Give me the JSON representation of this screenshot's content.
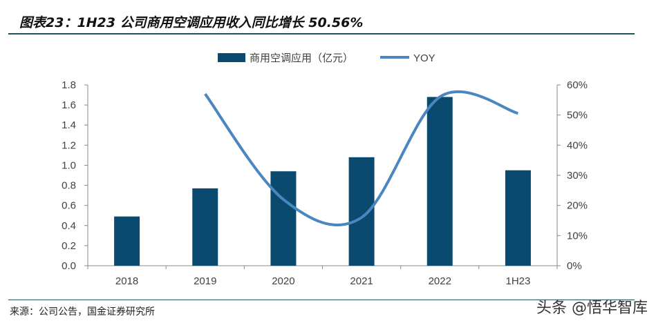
{
  "title": "图表23：1H23 公司商用空调应用收入同比增长 50.56%",
  "source": "来源：公司公告，国金证券研究所",
  "watermark": "头条 @悟华智库",
  "chart_data": {
    "type": "bar+line",
    "categories": [
      "2018",
      "2019",
      "2020",
      "2021",
      "2022",
      "1H23"
    ],
    "series": [
      {
        "name": "商用空调应用（亿元）",
        "type": "bar",
        "axis": "left",
        "color": "#0b4a6f",
        "values": [
          0.49,
          0.77,
          0.94,
          1.08,
          1.68,
          0.95
        ]
      },
      {
        "name": "YOY",
        "type": "line",
        "axis": "right",
        "color": "#4a86c0",
        "values": [
          null,
          57,
          22,
          16,
          56,
          50.56
        ]
      }
    ],
    "left_axis": {
      "range": [
        0,
        1.8
      ],
      "ticks": [
        "0.0",
        "0.2",
        "0.4",
        "0.6",
        "0.8",
        "1.0",
        "1.2",
        "1.4",
        "1.6",
        "1.8"
      ]
    },
    "right_axis": {
      "range": [
        0,
        60
      ],
      "ticks": [
        "0%",
        "10%",
        "20%",
        "30%",
        "40%",
        "50%",
        "60%"
      ]
    },
    "legend_position": "top-center",
    "grid": false
  }
}
